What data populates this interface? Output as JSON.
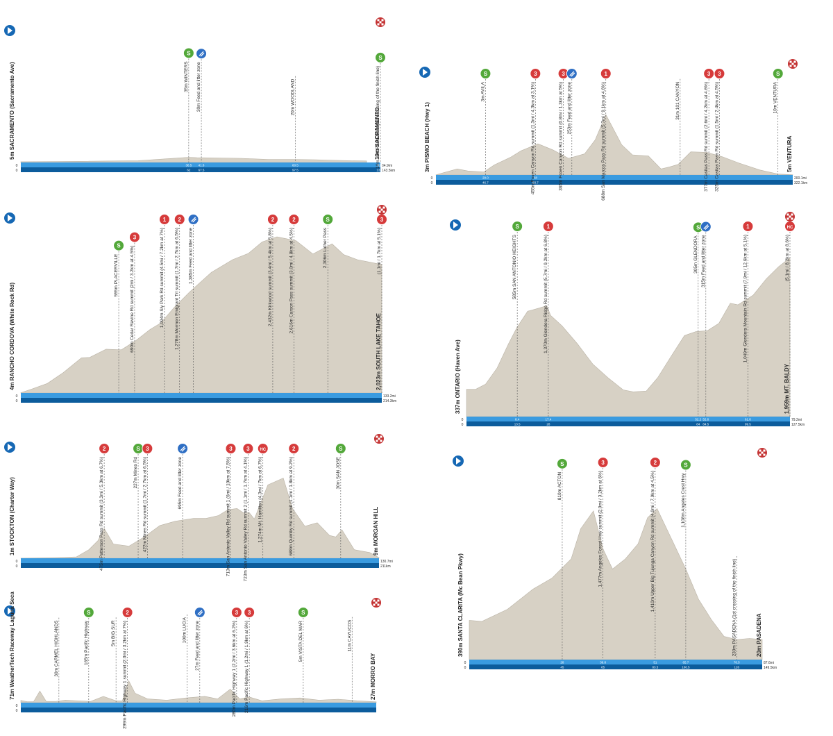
{
  "colors": {
    "terrain": "#d7d1c5",
    "terrain_edge": "#b9b2a5",
    "band_light": "#3a9be0",
    "band_dark": "#0c5c9c",
    "start": "#1668b4",
    "sprint": "#53a83a",
    "kom": "#d63b3b",
    "feed": "#2f6fc4",
    "finish": "#c43333",
    "text": "#2a2a2a"
  },
  "chart_data": [
    {
      "id": "stage1",
      "type": "area",
      "start_label": "5m SACRAMENTO (Sacramento Ave)",
      "finish_label": "10m SACRAMENTO",
      "x": [
        0,
        10,
        20,
        40,
        57.2,
        60,
        75,
        84.5,
        93.5,
        100,
        112,
        117.8
      ],
      "y": [
        5,
        6,
        8,
        12,
        35,
        32,
        28,
        20,
        20,
        18,
        12,
        10
      ],
      "xlim": [
        0,
        122.5
      ],
      "ylim": [
        0,
        900
      ],
      "band_km": "143.5km",
      "band_mi": "84.9mi",
      "markers": [
        {
          "type": "sprint",
          "badge": "S",
          "km": 57.2,
          "label": "35m WINTERS",
          "tick_top": "36.5",
          "tick_bottom": "62"
        },
        {
          "type": "feed",
          "badge": "",
          "km": 61.5,
          "label": "30m Feed and litter zone",
          "tick_top": "41.8",
          "tick_bottom": "67.5"
        },
        {
          "type": "none",
          "badge": "",
          "km": 93.5,
          "label": "20m WOODLAND",
          "tick_top": "60.5",
          "tick_bottom": "97.5"
        },
        {
          "type": "sprint",
          "badge": "S",
          "km": 122.5,
          "label": "10m SACRAMENTO (1st crossing of the finish line)",
          "tick_top": "82.3",
          "tick_bottom": "132.5"
        },
        {
          "type": "finish",
          "badge": "",
          "km": 122.5,
          "label": "",
          "tick_top": "",
          "tick_bottom": ""
        }
      ]
    },
    {
      "id": "stage2",
      "type": "area",
      "start_label": "3m PISMO BEACH (Hwy 1)",
      "finish_label": "5m VENTURA",
      "x": [
        0,
        20,
        30,
        45,
        55,
        70,
        80,
        96,
        110,
        125,
        140,
        150,
        160,
        175,
        185,
        200,
        212,
        220,
        228,
        240,
        255,
        270,
        285,
        305,
        322,
        336
      ],
      "y": [
        3,
        120,
        80,
        60,
        200,
        350,
        480,
        620,
        500,
        330,
        420,
        700,
        1200,
        600,
        400,
        380,
        120,
        160,
        210,
        460,
        450,
        360,
        240,
        100,
        20,
        5
      ],
      "xlim": [
        0,
        336
      ],
      "ylim": [
        0,
        2100
      ],
      "band_km": "322.1km",
      "band_mi": "200.1mi",
      "markers": [
        {
          "type": "sprint",
          "badge": "S",
          "km": 46.7,
          "label": "3m AVILA",
          "tick_top": "29.0",
          "tick_bottom": "46.7"
        },
        {
          "type": "kom",
          "badge": "3",
          "km": 93.7,
          "label": "455m Foxen Canyon Rd summit (1.3mi / 4.3km at 3.1%)",
          "tick_top": "58",
          "tick_bottom": "93.7"
        },
        {
          "type": "kom",
          "badge": "3",
          "km": 120,
          "label": "365m Foxen Canyon Rd summit (0.8mi / 1.3km at 5%)",
          "tick_top": "",
          "tick_bottom": ""
        },
        {
          "type": "feed",
          "badge": "",
          "km": 128,
          "label": "253m Feed and litter zone",
          "tick_top": "",
          "tick_bottom": ""
        },
        {
          "type": "kom",
          "badge": "1",
          "km": 160,
          "label": "688m San Marcos Pass Rd summit (5.7mi / 9.1km at 4.6%)",
          "tick_top": "",
          "tick_bottom": ""
        },
        {
          "type": "none",
          "badge": "",
          "km": 230,
          "label": "31m 101 CANYON",
          "tick_top": "",
          "tick_bottom": ""
        },
        {
          "type": "kom",
          "badge": "3",
          "km": 257,
          "label": "377m Casitas Pass Rd summit (2.6mi / 4.2km at 4.6%)",
          "tick_top": "",
          "tick_bottom": ""
        },
        {
          "type": "kom",
          "badge": "3",
          "km": 267,
          "label": "325m Casitas Pass Rd summit (1.5mi / 2.4km at 4.5%)",
          "tick_top": "",
          "tick_bottom": ""
        },
        {
          "type": "sprint",
          "badge": "S",
          "km": 322.1,
          "label": "10m VENTURA",
          "tick_top": "",
          "tick_bottom": ""
        },
        {
          "type": "finish",
          "badge": "",
          "km": 336,
          "label": "",
          "tick_top": "",
          "tick_bottom": ""
        }
      ]
    },
    {
      "id": "stage3",
      "type": "area",
      "start_label": "4m RANCHO CORDOVA (White Rock Rd)",
      "finish_label": "2,023m SOUTH LAKE TAHOE",
      "x": [
        0,
        10,
        25,
        40,
        57.3,
        65,
        80.5,
        95,
        109,
        122,
        132,
        145,
        160,
        180,
        200,
        215,
        228,
        242,
        260,
        276,
        294,
        305,
        318,
        330,
        341
      ],
      "y": [
        4,
        60,
        150,
        320,
        555,
        560,
        690,
        680,
        830,
        1000,
        1100,
        1350,
        1600,
        1900,
        2100,
        2200,
        2380,
        2460,
        2400,
        2190,
        2350,
        2180,
        2100,
        2060,
        2023
      ],
      "xlim": [
        0,
        341
      ],
      "ylim": [
        0,
        2800
      ],
      "band_km": "214.3km",
      "band_mi": "133.2mi",
      "markers": [
        {
          "type": "sprint",
          "badge": "S",
          "km": 92.5,
          "label": "555m PLACERVILLE",
          "tick_top": "",
          "tick_bottom": ""
        },
        {
          "type": "kom",
          "badge": "3",
          "km": 107.5,
          "label": "690m Cedar Ravine Rd summit (2mi / 3.2km at 4.5%)",
          "tick_top": "",
          "tick_bottom": ""
        },
        {
          "type": "kom",
          "badge": "1",
          "km": 135.7,
          "label": "1,094m Sly Park Rd summit (4.5mi / 7.2km at 7%)",
          "tick_top": "",
          "tick_bottom": ""
        },
        {
          "type": "kom",
          "badge": "2",
          "km": 150,
          "label": "1,278m Mormon Emigrant Trl summit (1.7mi / 2.7km at 6.5%)",
          "tick_top": "",
          "tick_bottom": ""
        },
        {
          "type": "feed",
          "badge": "",
          "km": 163,
          "label": "1,385m Feed and litter zone",
          "tick_top": "",
          "tick_bottom": ""
        },
        {
          "type": "kom",
          "badge": "2",
          "km": 238,
          "label": "2,432m Kirkwood summit (3.4mi / 5.4km at 5.8%)",
          "tick_top": "",
          "tick_bottom": ""
        },
        {
          "type": "kom",
          "badge": "2",
          "km": 258,
          "label": "2,616m Carson Pass summit (3.0mi / 4.8km at 4.5%)",
          "tick_top": "",
          "tick_bottom": ""
        },
        {
          "type": "sprint",
          "badge": "S",
          "km": 290,
          "label": "2,306m Luther Pass",
          "tick_top": "",
          "tick_bottom": ""
        },
        {
          "type": "kom",
          "badge": "3",
          "km": 341,
          "label": "(1.1mi / 1.7km at 5.1%)",
          "tick_top": "",
          "tick_bottom": ""
        },
        {
          "type": "finish",
          "badge": "",
          "km": 341,
          "label": "",
          "tick_top": "",
          "tick_bottom": ""
        }
      ]
    },
    {
      "id": "stage4",
      "type": "area",
      "start_label": "337m ONTARIO (Haven Ave)",
      "finish_label": "1,959m MT. BALDY",
      "x": [
        0,
        12,
        25,
        40,
        55,
        66,
        80,
        95,
        105,
        110,
        125,
        145,
        165,
        185,
        205,
        218,
        235,
        250,
        268,
        285,
        300,
        315,
        330,
        345,
        355,
        375,
        392,
        408,
        423
      ],
      "y": [
        337,
        337,
        400,
        600,
        900,
        1100,
        1300,
        1340,
        1370,
        1250,
        1120,
        900,
        650,
        480,
        330,
        306,
        315,
        480,
        750,
        1000,
        1049,
        1060,
        1150,
        1400,
        1380,
        1500,
        1700,
        1850,
        1959
      ],
      "xlim": [
        0,
        423
      ],
      "ylim": [
        0,
        2400
      ],
      "band_km": "127.5km",
      "band_mi": "79.2mi",
      "markers": [
        {
          "type": "sprint",
          "badge": "S",
          "km": 66.4,
          "label": "585m SAN ANTONIO HEIGHTS",
          "tick_top": "8.4",
          "tick_bottom": "13.5"
        },
        {
          "type": "kom",
          "badge": "1",
          "km": 107,
          "label": "1,370m Glendora Ridge Rd summit (5.7mi / 9.2km at 6.8%)",
          "tick_top": "17.4",
          "tick_bottom": "28"
        },
        {
          "type": "sprint",
          "badge": "S",
          "km": 303,
          "label": "305m GLENDORA",
          "tick_top": "52.2",
          "tick_bottom": "84"
        },
        {
          "type": "feed",
          "badge": "",
          "km": 313,
          "label": "315m Feed and litter zone",
          "tick_top": "52.6",
          "tick_bottom": "84.5"
        },
        {
          "type": "kom",
          "badge": "1",
          "km": 368,
          "label": "1,049m Glendora Mountain Rd summit (7.9mi / 12.6km at 5.1%)",
          "tick_top": "61.8",
          "tick_bottom": "99.5"
        },
        {
          "type": "kom",
          "badge": "HC",
          "km": 423,
          "label": "(5.1mi / 8.2km at 8.6%)",
          "tick_top": "",
          "tick_bottom": ""
        },
        {
          "type": "finish",
          "badge": "",
          "km": 423,
          "label": "",
          "tick_top": "",
          "tick_bottom": ""
        }
      ]
    },
    {
      "id": "stage5",
      "type": "area",
      "start_label": "1m STOCKTON (Charter Way)",
      "finish_label": "9m MORGAN HILL",
      "x": [
        0,
        30,
        60,
        90,
        110,
        125,
        135,
        150,
        175,
        200,
        225,
        250,
        280,
        300,
        320,
        335,
        350,
        360,
        370,
        378,
        400,
        425,
        440,
        460,
        480,
        500,
        510,
        520,
        540,
        565,
        580
      ],
      "y": [
        1,
        5,
        10,
        20,
        120,
        250,
        420,
        200,
        170,
        300,
        460,
        520,
        560,
        560,
        600,
        680,
        700,
        640,
        640,
        550,
        1030,
        1127,
        700,
        450,
        500,
        320,
        300,
        400,
        120,
        80,
        9
      ],
      "xlim": [
        0,
        580
      ],
      "ylim": [
        0,
        1600
      ],
      "band_km": "211km",
      "band_mi": "130.7mi",
      "markers": [
        {
          "type": "kom",
          "badge": "2",
          "km": 135,
          "label": "475m Patterson Pass Rd summit (3.3mi / 5.3km at 6.7%)",
          "tick_top": "",
          "tick_bottom": ""
        },
        {
          "type": "sprint",
          "badge": "S",
          "km": 190,
          "label": "227m Mines Rd",
          "tick_top": "",
          "tick_bottom": ""
        },
        {
          "type": "kom",
          "badge": "3",
          "km": 205,
          "label": "422m Mines Rd summit (1.7mi / 2.7km at 6.5%)",
          "tick_top": "",
          "tick_bottom": ""
        },
        {
          "type": "feed",
          "badge": "",
          "km": 262,
          "label": "695m Feed and litter zone",
          "tick_top": "",
          "tick_bottom": ""
        },
        {
          "type": "kom",
          "badge": "3",
          "km": 340,
          "label": "713m San Antonio Valley Rd summit 1 (6mi / 10km at 7.5%)",
          "tick_top": "",
          "tick_bottom": ""
        },
        {
          "type": "kom",
          "badge": "3",
          "km": 368,
          "label": "723m San Antonio Valley Rd summit 2 (1.1mi / 1.7km at 4.1%)",
          "tick_top": "",
          "tick_bottom": ""
        },
        {
          "type": "kom",
          "badge": "HC",
          "km": 392,
          "label": "1,274m Mt. Hamilton (4.3mi / 7km at 6.7%)",
          "tick_top": "",
          "tick_bottom": ""
        },
        {
          "type": "kom",
          "badge": "2",
          "km": 442,
          "label": "688m Quimby Rd summit (1.1mi / 1.8km at 9.2%)",
          "tick_top": "",
          "tick_bottom": ""
        },
        {
          "type": "sprint",
          "badge": "S",
          "km": 518,
          "label": "30m SAN JOSE",
          "tick_top": "",
          "tick_bottom": ""
        },
        {
          "type": "finish",
          "badge": "",
          "km": 580,
          "label": "",
          "tick_top": "",
          "tick_bottom": ""
        }
      ]
    },
    {
      "id": "stage6",
      "type": "area",
      "start_label": "390m SANTA CLARITA (Mc Bean Pkwy)",
      "finish_label": "20m PASADENA",
      "x": [
        0,
        20,
        60,
        100,
        130,
        160,
        175,
        195,
        210,
        225,
        245,
        265,
        280,
        295,
        310,
        325,
        340,
        360,
        380,
        400,
        420,
        440,
        460
      ],
      "y": [
        390,
        380,
        500,
        700,
        810,
        1000,
        1300,
        1477,
        1100,
        900,
        1000,
        1150,
        1410,
        1500,
        1300,
        1100,
        900,
        600,
        400,
        230,
        200,
        210,
        200
      ],
      "xlim": [
        0,
        460
      ],
      "ylim": [
        0,
        2000
      ],
      "band_km": "149.5km",
      "band_mi": "87.6mi",
      "markers": [
        {
          "type": "sprint",
          "badge": "S",
          "km": 146,
          "label": "810m ACTON",
          "tick_top": "28",
          "tick_bottom": "45"
        },
        {
          "type": "kom",
          "badge": "3",
          "km": 210,
          "label": "1,477m Angeles Forest Hwy summit (2.0mi / 3.2km at 6%)",
          "tick_top": "39.8",
          "tick_bottom": "65"
        },
        {
          "type": "kom",
          "badge": "2",
          "km": 292,
          "label": "1,410m Upper Big Tujunga Canyon Rd summit (4.9mi / 7.9km at 4.5%)",
          "tick_top": "51",
          "tick_bottom": "83.5"
        },
        {
          "type": "sprint",
          "badge": "S",
          "km": 340,
          "label": "1,108m Angeles Crest Hwy",
          "tick_top": "65.7",
          "tick_bottom": "106.5"
        },
        {
          "type": "none",
          "badge": "",
          "km": 420,
          "label": "230m PASADENA (1st crossing of the finish line)",
          "tick_top": "78.5",
          "tick_bottom": "126"
        },
        {
          "type": "finish",
          "badge": "",
          "km": 460,
          "label": "",
          "tick_top": "",
          "tick_bottom": ""
        }
      ]
    },
    {
      "id": "stage7",
      "type": "area",
      "start_label": "71m WeatherTech Raceway Laguna Seca",
      "finish_label": "27m MORRO BAY",
      "x": [
        0,
        10,
        20,
        30,
        40,
        55,
        70,
        90,
        110,
        130,
        150,
        160,
        170,
        180,
        200,
        230,
        260,
        290,
        310,
        330,
        345,
        360,
        380,
        410,
        440,
        470,
        500,
        530,
        560
      ],
      "y": [
        71,
        30,
        30,
        370,
        40,
        40,
        80,
        60,
        40,
        200,
        60,
        60,
        700,
        300,
        120,
        80,
        150,
        200,
        120,
        430,
        120,
        180,
        60,
        120,
        150,
        80,
        110,
        60,
        27
      ],
      "xlim": [
        0,
        560
      ],
      "ylim": [
        0,
        3000
      ],
      "band_km": "",
      "band_mi": "",
      "markers": [
        {
          "type": "none",
          "badge": "",
          "km": 60,
          "label": "30m CARMEL HIGHLANDS",
          "tick_top": "",
          "tick_bottom": ""
        },
        {
          "type": "sprint",
          "badge": "S",
          "km": 107,
          "label": "165m Pacific Highway",
          "tick_top": "",
          "tick_bottom": ""
        },
        {
          "type": "none",
          "badge": "",
          "km": 150,
          "label": "5m BIG SUR",
          "tick_top": "",
          "tick_bottom": ""
        },
        {
          "type": "kom",
          "badge": "2",
          "km": 168,
          "label": "299m Pacific Highway 1 summit (2.0mi / 3.2km at 7%)",
          "tick_top": "",
          "tick_bottom": ""
        },
        {
          "type": "none",
          "badge": "",
          "km": 262,
          "label": "100m LUCIA",
          "tick_top": "",
          "tick_bottom": ""
        },
        {
          "type": "feed",
          "badge": "",
          "km": 282,
          "label": "27m Feed and litter zone",
          "tick_top": "",
          "tick_bottom": ""
        },
        {
          "type": "kom",
          "badge": "3",
          "km": 340,
          "label": "280m Pacific Highway 1 (2.2mi / 3.6km at 6.2%)",
          "tick_top": "",
          "tick_bottom": ""
        },
        {
          "type": "kom",
          "badge": "3",
          "km": 360,
          "label": "216m Pacific Highway 1 (1.2mi / 1.9km at 6%)",
          "tick_top": "",
          "tick_bottom": ""
        },
        {
          "type": "sprint",
          "badge": "S",
          "km": 445,
          "label": "5m VISTA DEL MAR",
          "tick_top": "",
          "tick_bottom": ""
        },
        {
          "type": "none",
          "badge": "",
          "km": 522,
          "label": "11m CAYUCOS",
          "tick_top": "",
          "tick_bottom": ""
        },
        {
          "type": "finish",
          "badge": "",
          "km": 560,
          "label": "",
          "tick_top": "",
          "tick_bottom": ""
        }
      ]
    }
  ]
}
